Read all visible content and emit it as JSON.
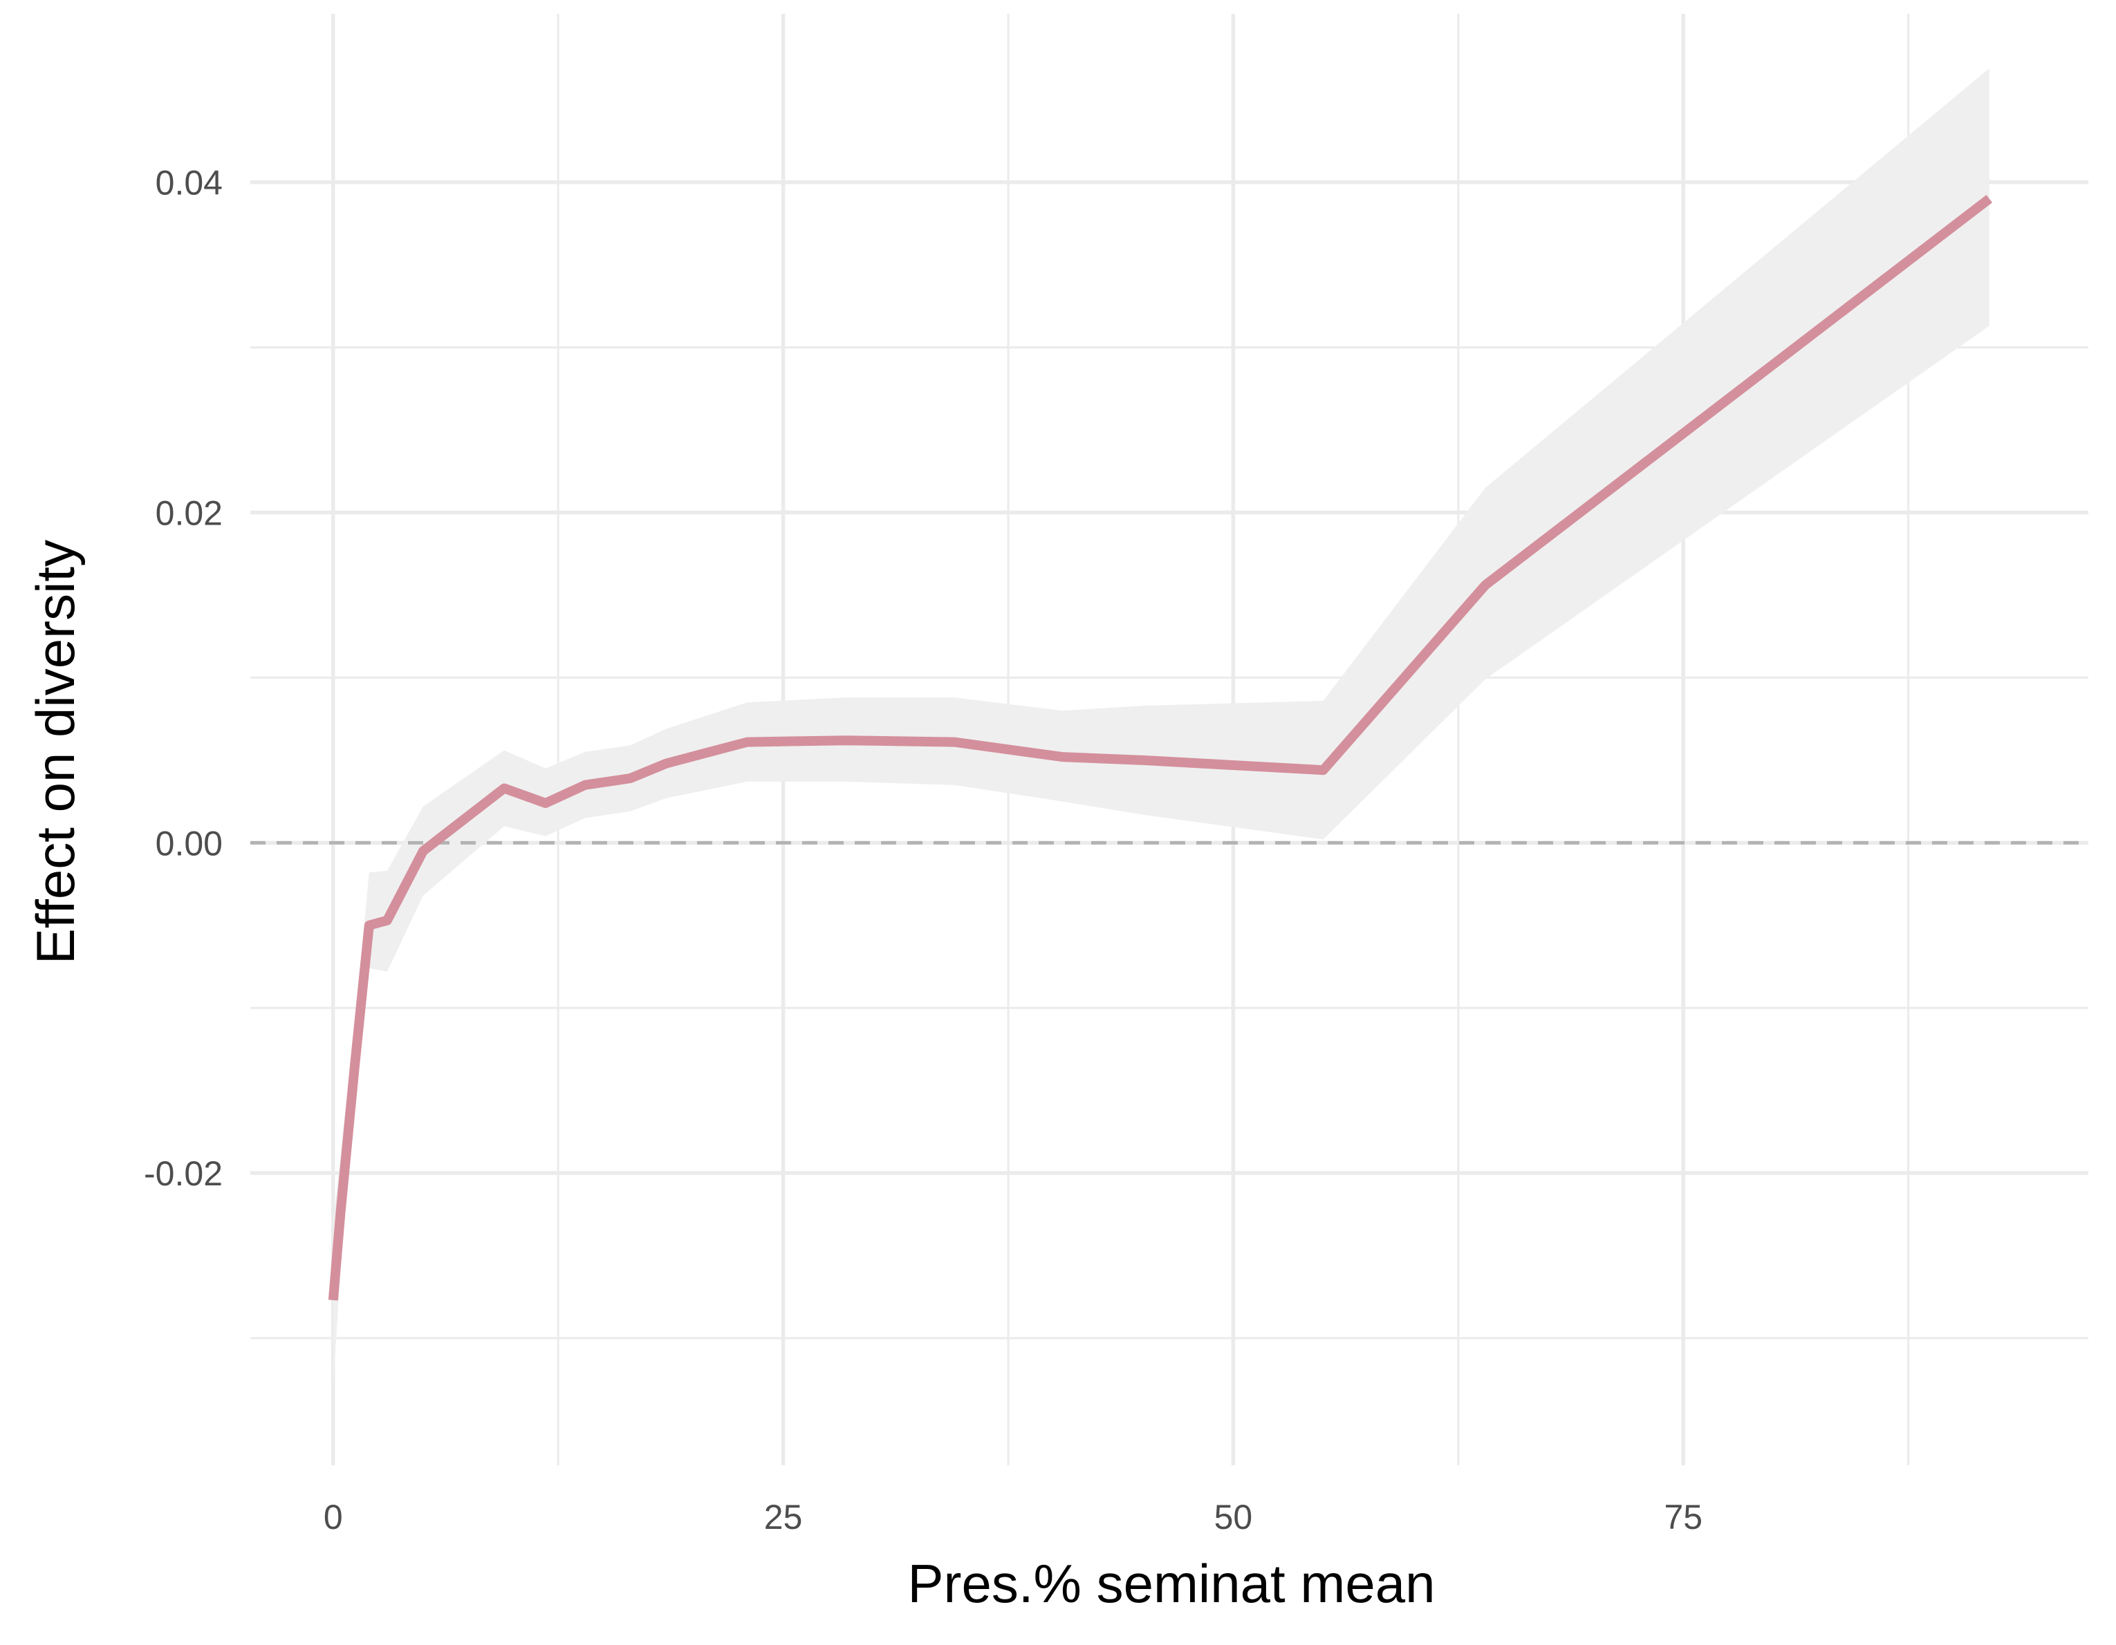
{
  "chart_data": {
    "type": "line",
    "title": "",
    "xlabel": "Pres.% seminat mean",
    "ylabel": "Effect on diversity",
    "xlim": [
      -4.6,
      97.5
    ],
    "ylim": [
      -0.0377,
      0.0502
    ],
    "x_ticks": [
      0,
      25,
      50,
      75
    ],
    "x_tick_labels": [
      "0",
      "25",
      "50",
      "75"
    ],
    "x_minor_ticks": [
      12.5,
      37.5,
      62.5,
      87.5
    ],
    "y_ticks": [
      -0.02,
      0.0,
      0.02,
      0.04
    ],
    "y_tick_labels": [
      "-0.02",
      "0.00",
      "0.02",
      "0.04"
    ],
    "y_minor_ticks": [
      -0.03,
      -0.01,
      0.01,
      0.03
    ],
    "grid": true,
    "legend": "none",
    "reference_line": {
      "y": 0.0,
      "style": "dashed",
      "color": "#b3b3b3"
    },
    "colors": {
      "line": "#d48f9c",
      "band": "#efefef",
      "grid": "#ebebeb",
      "tick_text": "#4d4d4d"
    },
    "series": [
      {
        "x": [
          0.0,
          0.4,
          1.2,
          2.0,
          3.0,
          5.0,
          9.5,
          11.8,
          14.0,
          16.5,
          18.5,
          23.0,
          28.5,
          34.5,
          40.5,
          45.0,
          55.0,
          64.0,
          92.0
        ],
        "y": [
          -0.0277,
          -0.0225,
          -0.0135,
          -0.005,
          -0.0047,
          -0.0005,
          0.0033,
          0.0024,
          0.0035,
          0.0039,
          0.0048,
          0.0061,
          0.0062,
          0.0061,
          0.0052,
          0.005,
          0.0044,
          0.0156,
          0.039
        ],
        "lower": [
          -0.033,
          -0.026,
          -0.016,
          -0.0076,
          -0.0078,
          -0.0032,
          0.001,
          0.0004,
          0.0015,
          0.0019,
          0.0027,
          0.0037,
          0.0037,
          0.0035,
          0.0025,
          0.0017,
          0.0002,
          0.0099,
          0.0313
        ],
        "upper": [
          -0.023,
          -0.019,
          -0.011,
          -0.0018,
          -0.0017,
          0.0022,
          0.0056,
          0.0045,
          0.0055,
          0.0059,
          0.0069,
          0.0085,
          0.0088,
          0.0088,
          0.008,
          0.0083,
          0.0086,
          0.0215,
          0.0469
        ]
      }
    ]
  }
}
